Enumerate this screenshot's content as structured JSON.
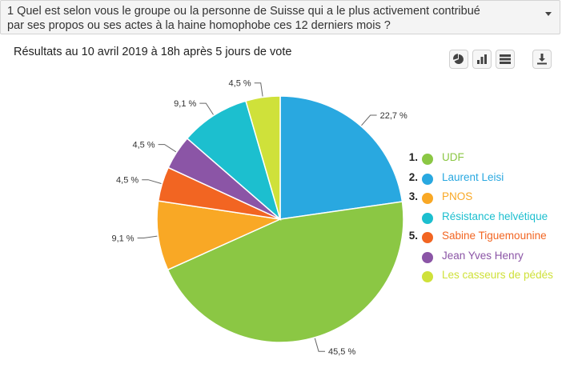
{
  "question": {
    "line1": "1 Quel est selon vous le groupe ou la personne de Suisse qui a le plus activement contribué",
    "line2": "par ses propos ou ses actes à la haine homophobe ces 12 derniers mois ?",
    "dropdown_icon": "caret-down-icon"
  },
  "toolbar": {
    "buttons": [
      {
        "name": "pie-chart-icon"
      },
      {
        "name": "bar-chart-icon"
      },
      {
        "name": "table-view-icon"
      },
      {
        "name": "download-icon"
      }
    ]
  },
  "chart_data": {
    "type": "pie",
    "title": "Résultats au 10 avril 2019 à 18h après 5 jours de vote",
    "slices": [
      {
        "label": "Laurent Leisi",
        "value": 22.7,
        "value_label": "22,7 %",
        "color": "#29a8e0",
        "rank": "2."
      },
      {
        "label": "UDF",
        "value": 45.5,
        "value_label": "45,5 %",
        "color": "#8bc744",
        "rank": "1."
      },
      {
        "label": "PNOS",
        "value": 9.1,
        "value_label": "9,1 %",
        "color": "#f9a825",
        "rank": "3."
      },
      {
        "label": "Sabine Tiguemounine",
        "value": 4.5,
        "value_label": "4,5 %",
        "color": "#f26522",
        "rank": "5."
      },
      {
        "label": "Jean Yves Henry",
        "value": 4.5,
        "value_label": "4,5 %",
        "color": "#8b55a6",
        "rank": ""
      },
      {
        "label": "Résistance helvétique",
        "value": 9.1,
        "value_label": "9,1 %",
        "color": "#1cbfcf",
        "rank": ""
      },
      {
        "label": "Les casseurs de pédés",
        "value": 4.5,
        "value_label": "4,5 %",
        "color": "#cfe13a",
        "rank": ""
      }
    ],
    "legend": [
      {
        "rank": "1.",
        "label": "UDF",
        "color": "#8bc744"
      },
      {
        "rank": "2.",
        "label": "Laurent Leisi",
        "color": "#29a8e0"
      },
      {
        "rank": "3.",
        "label": "PNOS",
        "color": "#f9a825"
      },
      {
        "rank": "",
        "label": "Résistance helvétique",
        "color": "#1cbfcf"
      },
      {
        "rank": "5.",
        "label": "Sabine Tiguemounine",
        "color": "#f26522"
      },
      {
        "rank": "",
        "label": "Jean Yves Henry",
        "color": "#8b55a6"
      },
      {
        "rank": "",
        "label": "Les casseurs de pédés",
        "color": "#cfe13a"
      }
    ],
    "legend_position": "right"
  }
}
